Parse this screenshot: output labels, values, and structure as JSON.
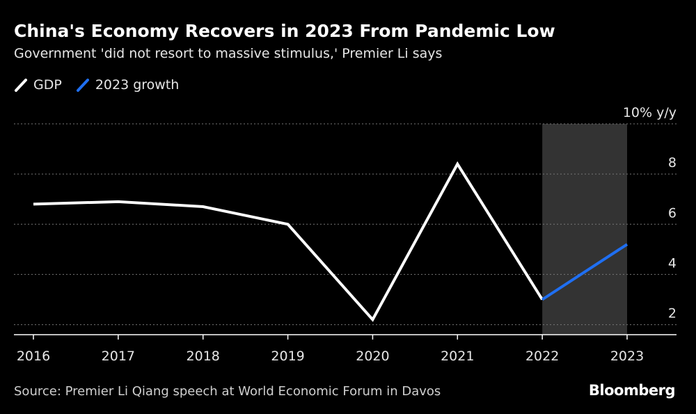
{
  "chart_data": {
    "type": "line",
    "title": "China's Economy Recovers in 2023 From Pandemic Low",
    "subtitle": "Government 'did not resort to massive stimulus,' Premier Li says",
    "x": [
      "2016",
      "2017",
      "2018",
      "2019",
      "2020",
      "2021",
      "2022",
      "2023"
    ],
    "series": [
      {
        "name": "GDP",
        "color": "#ffffff",
        "x": [
          "2016",
          "2017",
          "2018",
          "2019",
          "2020",
          "2021",
          "2022"
        ],
        "values": [
          6.8,
          6.9,
          6.7,
          6.0,
          2.2,
          8.4,
          3.0
        ]
      },
      {
        "name": "2023 growth",
        "color": "#1f6ff2",
        "x": [
          "2022",
          "2023"
        ],
        "values": [
          3.0,
          5.2
        ]
      }
    ],
    "ylim": [
      1.6,
      10
    ],
    "yticks": [
      {
        "value": 10,
        "label": "10% y/y"
      },
      {
        "value": 8,
        "label": "8"
      },
      {
        "value": 6,
        "label": "6"
      },
      {
        "value": 4,
        "label": "4"
      },
      {
        "value": 2,
        "label": "2"
      }
    ],
    "highlight": {
      "from": "2022",
      "to": "2023",
      "color": "#333333"
    },
    "grid": true,
    "legend_position": "top-left"
  },
  "source": "Source: Premier Li Qiang speech at World Economic Forum in Davos",
  "logo": "Bloomberg",
  "colors": {
    "background": "#000000",
    "gdp": "#ffffff",
    "growth2023": "#1f6ff2",
    "grid": "#777777"
  }
}
